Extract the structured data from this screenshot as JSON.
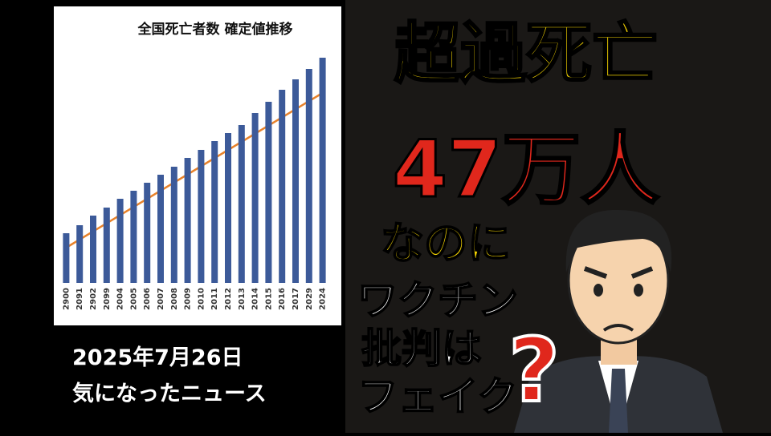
{
  "chart_data": {
    "type": "bar",
    "title": "全国死亡者数 確定値推移",
    "categories": [
      "2900",
      "2091",
      "2902",
      "2099",
      "2004",
      "2005",
      "2006",
      "2007",
      "2008",
      "2009",
      "2010",
      "2011",
      "2012",
      "2013",
      "2014",
      "2015",
      "2016",
      "2017",
      "2029",
      "2024"
    ],
    "values": [
      62,
      72,
      84,
      94,
      105,
      115,
      125,
      135,
      145,
      156,
      166,
      177,
      187,
      197,
      212,
      226,
      241,
      254,
      267,
      281
    ],
    "color": "#3c5a99",
    "trend": [
      44,
      237
    ],
    "trend_color": "#e8822a",
    "ylim": [
      0,
      313
    ]
  },
  "date": "2025年7月26日",
  "caption": "気になったニュース",
  "headline": [
    "超過死亡",
    "47万人",
    "なのに",
    "ワクチン",
    "批判は",
    "フェイク",
    "?"
  ]
}
